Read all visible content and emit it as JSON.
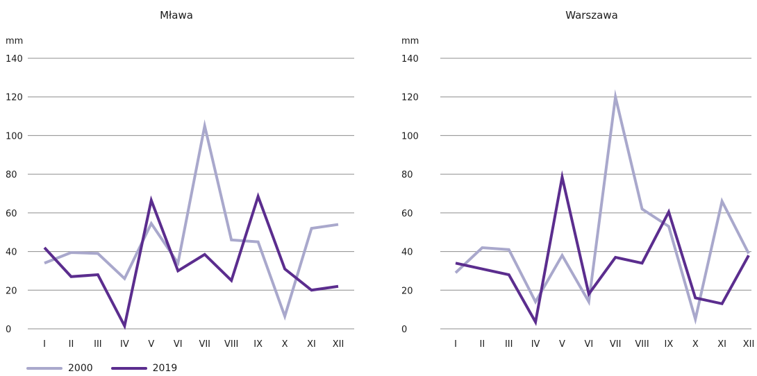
{
  "colors": {
    "2000": "#a9a8cc",
    "2019": "#5b2d8e"
  },
  "legend": [
    {
      "name": "2000",
      "color": "#a9a8cc"
    },
    {
      "name": "2019",
      "color": "#5b2d8e"
    }
  ],
  "chart_data": [
    {
      "type": "line",
      "title": "Mława",
      "ylabel": "mm",
      "ylim": [
        0,
        140
      ],
      "yticks": [
        0,
        20,
        40,
        60,
        80,
        100,
        120,
        140
      ],
      "grid": true,
      "legend_position": "bottom-left",
      "categories": [
        "I",
        "II",
        "III",
        "IV",
        "V",
        "VI",
        "VII",
        "VIII",
        "IX",
        "X",
        "XI",
        "XII"
      ],
      "series": [
        {
          "name": "2000",
          "color": "#a9a8cc",
          "values": [
            34,
            39.5,
            39,
            26,
            54.5,
            34,
            105,
            46,
            45,
            6.5,
            52,
            54
          ]
        },
        {
          "name": "2019",
          "color": "#5b2d8e",
          "values": [
            42,
            27,
            28,
            1.5,
            66.5,
            30,
            38.5,
            25,
            68.5,
            31,
            20,
            22
          ]
        }
      ]
    },
    {
      "type": "line",
      "title": "Warszawa",
      "ylabel": "mm",
      "ylim": [
        0,
        140
      ],
      "yticks": [
        0,
        20,
        40,
        60,
        80,
        100,
        120,
        140
      ],
      "grid": true,
      "categories": [
        "I",
        "II",
        "III",
        "IV",
        "V",
        "VI",
        "VII",
        "VIII",
        "IX",
        "X",
        "XI",
        "XII"
      ],
      "series": [
        {
          "name": "2000",
          "color": "#a9a8cc",
          "values": [
            29,
            42,
            41,
            14,
            38,
            14,
            120,
            62,
            53,
            5,
            66,
            39
          ]
        },
        {
          "name": "2019",
          "color": "#5b2d8e",
          "values": [
            34,
            31,
            28,
            3.5,
            78.5,
            18,
            37,
            34,
            60.5,
            16,
            13,
            38
          ]
        }
      ]
    }
  ]
}
